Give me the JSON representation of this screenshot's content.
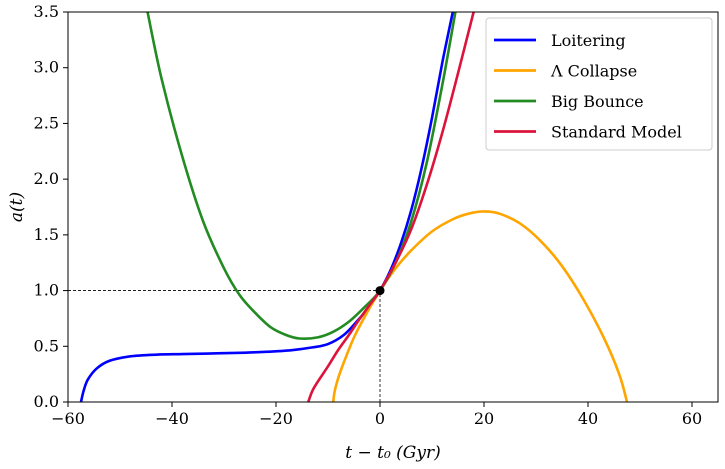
{
  "chart_data": {
    "type": "line",
    "xlabel": "t − t₀ (Gyr)",
    "ylabel": "a(t)",
    "xlim": [
      -60,
      65
    ],
    "ylim": [
      0.0,
      3.5
    ],
    "x_ticks": [
      -60,
      -40,
      -20,
      0,
      20,
      40,
      60
    ],
    "x_tick_labels": [
      "−60",
      "−40",
      "−20",
      "0",
      "20",
      "40",
      "60"
    ],
    "y_ticks": [
      0.0,
      0.5,
      1.0,
      1.5,
      2.0,
      2.5,
      3.0,
      3.5
    ],
    "y_tick_labels": [
      "0.0",
      "0.5",
      "1.0",
      "1.5",
      "2.0",
      "2.5",
      "3.0",
      "3.5"
    ],
    "grid": false,
    "legend_position": "top-right",
    "marker_point": {
      "x": 0,
      "y": 1.0
    },
    "reference_lines": "dashed lines from axes to the point (0, 1.0)",
    "series": [
      {
        "name": "Loitering",
        "color": "#0000ff",
        "points": [
          [
            -57.5,
            0.0
          ],
          [
            -57.0,
            0.1
          ],
          [
            -56.2,
            0.2
          ],
          [
            -54.5,
            0.3
          ],
          [
            -52.0,
            0.37
          ],
          [
            -48.0,
            0.41
          ],
          [
            -43.0,
            0.425
          ],
          [
            -38.0,
            0.43
          ],
          [
            -33.0,
            0.435
          ],
          [
            -28.0,
            0.44
          ],
          [
            -22.0,
            0.45
          ],
          [
            -17.0,
            0.465
          ],
          [
            -13.0,
            0.49
          ],
          [
            -10.0,
            0.52
          ],
          [
            -7.0,
            0.6
          ],
          [
            -4.5,
            0.72
          ],
          [
            -2.0,
            0.86
          ],
          [
            0.0,
            1.0
          ],
          [
            2.0,
            1.18
          ],
          [
            4.0,
            1.42
          ],
          [
            6.0,
            1.72
          ],
          [
            8.0,
            2.1
          ],
          [
            10.0,
            2.55
          ],
          [
            12.0,
            3.05
          ],
          [
            14.0,
            3.5
          ]
        ]
      },
      {
        "name": "Λ Collapse",
        "color": "#ffa500",
        "points": [
          [
            -9.0,
            0.0
          ],
          [
            -8.7,
            0.1
          ],
          [
            -8.0,
            0.22
          ],
          [
            -7.0,
            0.35
          ],
          [
            -5.0,
            0.58
          ],
          [
            -3.0,
            0.76
          ],
          [
            0.0,
            1.0
          ],
          [
            3.0,
            1.2
          ],
          [
            6.0,
            1.36
          ],
          [
            10.0,
            1.53
          ],
          [
            14.0,
            1.64
          ],
          [
            17.0,
            1.69
          ],
          [
            20.0,
            1.71
          ],
          [
            23.0,
            1.69
          ],
          [
            27.0,
            1.6
          ],
          [
            31.0,
            1.44
          ],
          [
            35.0,
            1.22
          ],
          [
            39.0,
            0.93
          ],
          [
            43.0,
            0.58
          ],
          [
            46.0,
            0.25
          ],
          [
            47.5,
            0.0
          ]
        ]
      },
      {
        "name": "Big Bounce",
        "color": "#228b22",
        "points": [
          [
            -44.7,
            3.5
          ],
          [
            -42.0,
            2.9
          ],
          [
            -38.0,
            2.2
          ],
          [
            -34.0,
            1.62
          ],
          [
            -30.0,
            1.2
          ],
          [
            -27.0,
            0.96
          ],
          [
            -24.0,
            0.8
          ],
          [
            -21.0,
            0.67
          ],
          [
            -18.0,
            0.6
          ],
          [
            -15.5,
            0.57
          ],
          [
            -12.0,
            0.58
          ],
          [
            -9.0,
            0.63
          ],
          [
            -6.0,
            0.72
          ],
          [
            -3.0,
            0.85
          ],
          [
            0.0,
            1.0
          ],
          [
            3.0,
            1.25
          ],
          [
            6.0,
            1.62
          ],
          [
            9.0,
            2.15
          ],
          [
            12.0,
            2.85
          ],
          [
            14.5,
            3.5
          ]
        ]
      },
      {
        "name": "Standard Model",
        "color": "#dc143c",
        "points": [
          [
            -13.8,
            0.0
          ],
          [
            -13.0,
            0.1
          ],
          [
            -12.0,
            0.18
          ],
          [
            -10.0,
            0.32
          ],
          [
            -8.0,
            0.47
          ],
          [
            -6.0,
            0.6
          ],
          [
            -4.0,
            0.74
          ],
          [
            -2.0,
            0.87
          ],
          [
            0.0,
            1.0
          ],
          [
            3.0,
            1.25
          ],
          [
            6.0,
            1.55
          ],
          [
            9.0,
            1.95
          ],
          [
            12.0,
            2.42
          ],
          [
            15.0,
            2.95
          ],
          [
            18.0,
            3.5
          ]
        ]
      }
    ]
  }
}
